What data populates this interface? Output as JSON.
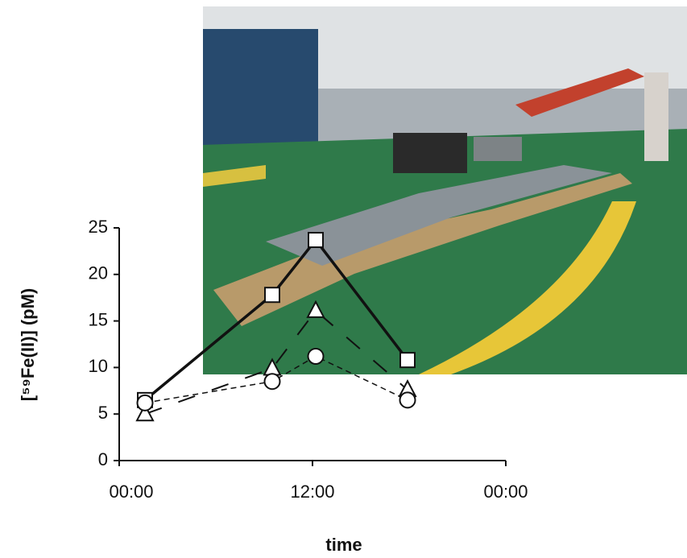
{
  "chart_data": {
    "type": "line",
    "xlabel": "time",
    "ylabel": "[⁵⁹Fe(II)]  (pM)",
    "xlim": [
      0,
      24
    ],
    "xticks": [
      {
        "value": 0,
        "label": "00:00"
      },
      {
        "value": 12,
        "label": "12:00"
      },
      {
        "value": 24,
        "label": "00:00"
      }
    ],
    "ylim": [
      0,
      25
    ],
    "yticks": [
      0,
      5,
      10,
      15,
      20,
      25
    ],
    "series": [
      {
        "color": "#111111",
        "marker": "square",
        "linestyle": "solid",
        "x": [
          1.6,
          9.5,
          12.2,
          17.9
        ],
        "values": [
          6.5,
          17.8,
          23.7,
          10.8
        ]
      },
      {
        "color": "#111111",
        "marker": "triangle",
        "linestyle": "longdash",
        "x": [
          1.6,
          9.5,
          12.2,
          17.9
        ],
        "values": [
          5.0,
          9.9,
          16.1,
          7.6
        ]
      },
      {
        "color": "#111111",
        "marker": "circle",
        "linestyle": "shortdash",
        "x": [
          1.6,
          9.5,
          12.2,
          17.9
        ],
        "values": [
          6.2,
          8.5,
          11.2,
          6.5
        ]
      }
    ]
  }
}
